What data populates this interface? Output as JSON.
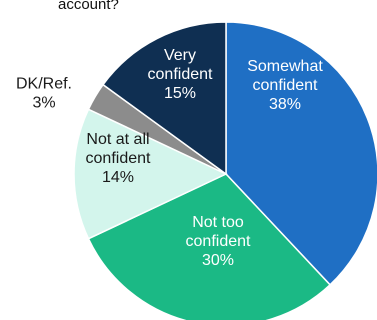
{
  "header": {
    "title_fragment": "account?"
  },
  "chart_data": {
    "type": "pie",
    "title": "",
    "start_category": "Somewhat confident",
    "slices": [
      {
        "label_lines": [
          "Somewhat",
          "confident"
        ],
        "pct_label": "38%",
        "value": 38,
        "color": "#1f6fc4",
        "text_color": "#ffffff"
      },
      {
        "label_lines": [
          "Not too",
          "confident"
        ],
        "pct_label": "30%",
        "value": 30,
        "color": "#1bb985",
        "text_color": "#ffffff"
      },
      {
        "label_lines": [
          "Not at all",
          "confident"
        ],
        "pct_label": "14%",
        "value": 14,
        "color": "#d3f5ec",
        "text_color": "#1a1a1a"
      },
      {
        "label_lines": [
          "DK/Ref."
        ],
        "pct_label": "3%",
        "value": 3,
        "color": "#8c8c8c",
        "text_color": "#1a1a1a"
      },
      {
        "label_lines": [
          "Very",
          "confident"
        ],
        "pct_label": "15%",
        "value": 15,
        "color": "#0f2f52",
        "text_color": "#ffffff"
      }
    ]
  }
}
